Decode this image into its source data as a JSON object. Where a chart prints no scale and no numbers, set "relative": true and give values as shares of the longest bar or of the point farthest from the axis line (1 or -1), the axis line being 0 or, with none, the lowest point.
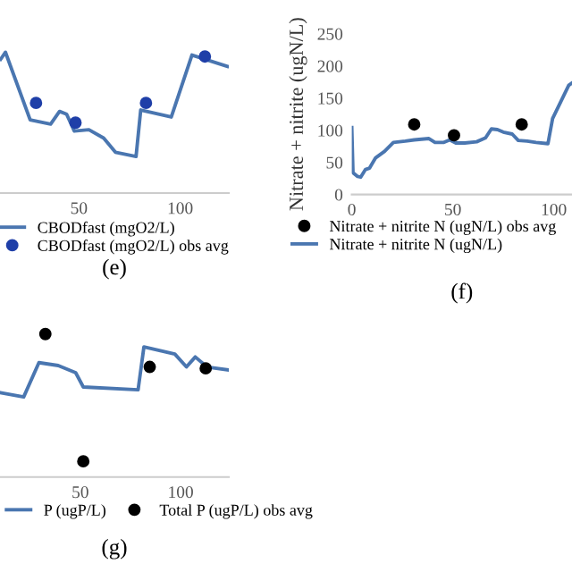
{
  "chart_data": [
    {
      "type": "line",
      "relative": true,
      "xlim": [
        11,
        124
      ],
      "xticks": [
        50,
        100
      ],
      "legend": "bottom",
      "annotations": [
        "(e)"
      ],
      "series": [
        {
          "name": "CBODfast (mgO2/L)",
          "color": "#4a76b0",
          "x": [
            11.3,
            13.7,
            25.9,
            36.0,
            40.4,
            43.9,
            47.7,
            54.9,
            62.2,
            68.0,
            78.2,
            80.5,
            95.6,
            105.8,
            123.3
          ],
          "values": [
            0.95,
            1.0,
            0.52,
            0.49,
            0.58,
            0.56,
            0.44,
            0.45,
            0.39,
            0.29,
            0.26,
            0.59,
            0.54,
            0.98,
            0.9
          ]
        },
        {
          "name": "CBODfast (mgO2/L) obs avg",
          "type": "scatter",
          "marker": "circle",
          "color": "#1f3fa8",
          "x": [
            28.8,
            48.3,
            83.1,
            112.2
          ],
          "values": [
            0.64,
            0.5,
            0.64,
            0.97
          ]
        }
      ]
    },
    {
      "type": "line",
      "xlim": [
        0,
        109
      ],
      "ylim": [
        0,
        250
      ],
      "xticks": [
        0,
        50,
        100
      ],
      "yticks": [
        0,
        50,
        100,
        150,
        200,
        250
      ],
      "ylabel": "Nitrate + nitrite (ugN/L)",
      "legend": "bottom",
      "annotations": [
        "(f)"
      ],
      "series": [
        {
          "name": "Nitrate + nitrite N (ugN/L) obs avg",
          "type": "scatter",
          "marker": "circle",
          "color": "#000000",
          "x": [
            30.9,
            50.6,
            84.1
          ],
          "values": [
            109,
            92,
            109
          ]
        },
        {
          "name": "Nitrate + nitrite N (ugN/L)",
          "color": "#4a76b0",
          "x": [
            0,
            0.6,
            2.9,
            4.4,
            6.8,
            8.8,
            11.8,
            16.2,
            20.6,
            26.5,
            30.9,
            38.2,
            41.2,
            45.6,
            48.5,
            51.5,
            55.9,
            61.8,
            66.2,
            69.1,
            72.1,
            75.0,
            79.4,
            82.4,
            86.8,
            91.2,
            97.1,
            99.4,
            107.4,
            108.8
          ],
          "values": [
            104,
            34,
            28,
            27,
            39,
            41,
            57,
            67,
            81,
            83,
            85,
            87,
            81,
            81,
            85,
            80,
            80,
            82,
            88,
            102,
            101,
            97,
            94,
            84,
            83,
            81,
            79,
            118,
            170,
            173
          ]
        }
      ]
    },
    {
      "type": "line",
      "relative": true,
      "xlim": [
        10,
        124
      ],
      "xticks": [
        50,
        100
      ],
      "legend": "bottom",
      "annotations": [
        "(g)"
      ],
      "series": [
        {
          "name": "P (ugP/L)",
          "color": "#4a76b0",
          "x": [
            10.2,
            21.8,
            29.4,
            39.0,
            47.7,
            51.5,
            78.8,
            81.7,
            97.1,
            102.9,
            107.3,
            113.1,
            123.3
          ],
          "values": [
            0.59,
            0.56,
            0.8,
            0.78,
            0.73,
            0.63,
            0.61,
            0.91,
            0.86,
            0.77,
            0.84,
            0.77,
            0.75
          ]
        },
        {
          "name": "Total P (ugP/L) obs avg",
          "type": "scatter",
          "marker": "circle",
          "color": "#000000",
          "x": [
            32.6,
            51.5,
            84.6,
            112.5
          ],
          "values": [
            1.0,
            0.11,
            0.77,
            0.76
          ]
        }
      ]
    }
  ]
}
